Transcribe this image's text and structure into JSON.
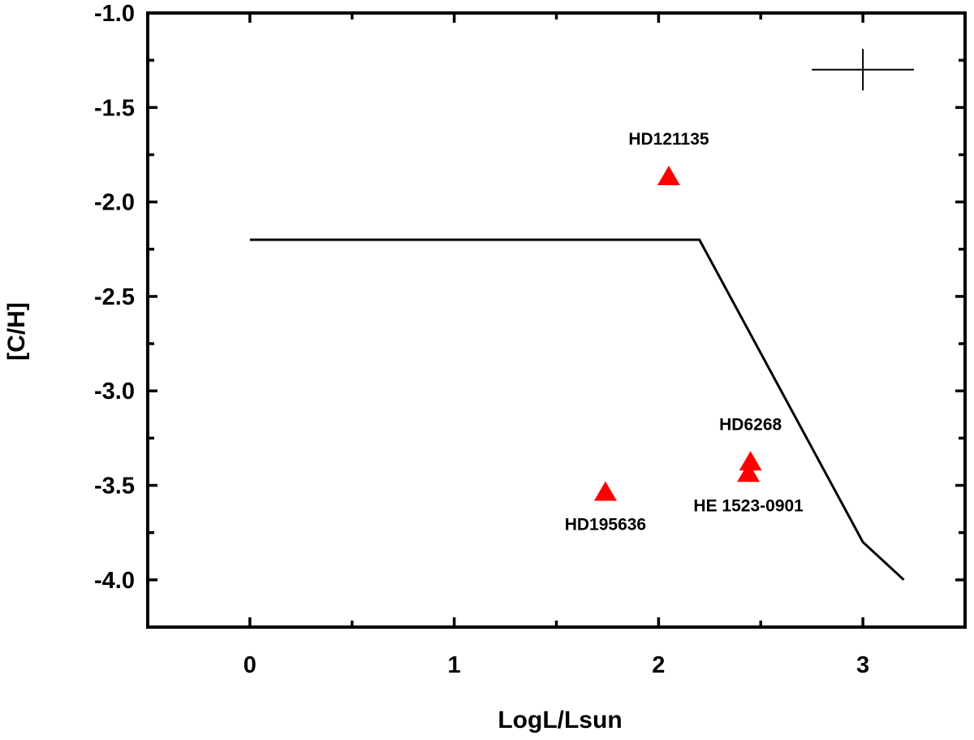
{
  "chart_data": {
    "type": "scatter",
    "xlabel": "LogL/Lsun",
    "ylabel": "[C/H]",
    "xlim": [
      -0.5,
      3.5
    ],
    "ylim": [
      -4.25,
      -1.0
    ],
    "x_ticks": [
      0,
      1,
      2,
      3
    ],
    "x_tick_labels": [
      "0",
      "1",
      "2",
      "3"
    ],
    "y_ticks": [
      -1.0,
      -1.5,
      -2.0,
      -2.5,
      -3.0,
      -3.5,
      -4.0
    ],
    "y_tick_labels": [
      "-1.0",
      "-1.5",
      "-2.0",
      "-2.5",
      "-3.0",
      "-3.5",
      "-4.0"
    ],
    "grid": false,
    "series": [
      {
        "marker": "triangle",
        "color": "#ff0000",
        "points": [
          {
            "x": 2.05,
            "y": -1.86,
            "label": "HD121135",
            "label_pos": "above"
          },
          {
            "x": 2.45,
            "y": -3.37,
            "label": "HD6268",
            "label_pos": "above"
          },
          {
            "x": 2.44,
            "y": -3.43,
            "label": "HE 1523-0901",
            "label_pos": "below"
          },
          {
            "x": 1.74,
            "y": -3.53,
            "label": "HD195636",
            "label_pos": "below"
          }
        ]
      },
      {
        "type": "line",
        "color": "#000000",
        "x": [
          0,
          2.2,
          3.0,
          3.2
        ],
        "y": [
          -2.2,
          -2.2,
          -3.8,
          -4.0
        ]
      }
    ],
    "error_bar": {
      "x": 3.0,
      "y": -1.3,
      "xerr": 0.25,
      "yerr": 0.11
    }
  }
}
